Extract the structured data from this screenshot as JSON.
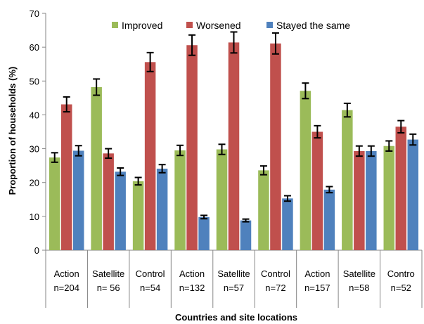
{
  "chart_data": {
    "type": "bar",
    "title": "",
    "xlabel": "Countries and site locations",
    "ylabel": "Proportion of households (%)",
    "ylim": [
      0,
      70
    ],
    "yticks": [
      0,
      10,
      20,
      30,
      40,
      50,
      60,
      70
    ],
    "grid": false,
    "legend_position": "top",
    "categories": [
      {
        "line1": "Action",
        "line2": "n=204"
      },
      {
        "line1": "Satellite",
        "line2": "n= 56"
      },
      {
        "line1": "Control",
        "line2": "n=54"
      },
      {
        "line1": "Action",
        "line2": "n=132"
      },
      {
        "line1": "Satellite",
        "line2": "n=57"
      },
      {
        "line1": "Control",
        "line2": "n=72"
      },
      {
        "line1": "Action",
        "line2": "n=157"
      },
      {
        "line1": "Satellite",
        "line2": "n=58"
      },
      {
        "line1": "Contro",
        "line2": "n=52"
      }
    ],
    "series": [
      {
        "name": "Improved",
        "color": "#9BBB59",
        "values": [
          27.4,
          48.2,
          20.4,
          29.5,
          29.8,
          23.6,
          47.1,
          41.4,
          30.8
        ],
        "errors": [
          1.4,
          2.4,
          1.1,
          1.5,
          1.5,
          1.3,
          2.3,
          2.0,
          1.5
        ]
      },
      {
        "name": "Worsened",
        "color": "#C0504D",
        "values": [
          43.1,
          28.6,
          55.6,
          60.6,
          61.4,
          61.1,
          35.0,
          29.3,
          36.5
        ],
        "errors": [
          2.2,
          1.4,
          2.8,
          3.0,
          3.1,
          3.1,
          1.8,
          1.5,
          1.8
        ]
      },
      {
        "name": "Stayed the same",
        "color": "#4F81BD",
        "values": [
          29.4,
          23.2,
          24.1,
          9.8,
          8.8,
          15.3,
          17.9,
          29.3,
          32.7
        ],
        "errors": [
          1.5,
          1.1,
          1.2,
          0.5,
          0.4,
          0.8,
          0.9,
          1.5,
          1.6
        ]
      }
    ]
  }
}
